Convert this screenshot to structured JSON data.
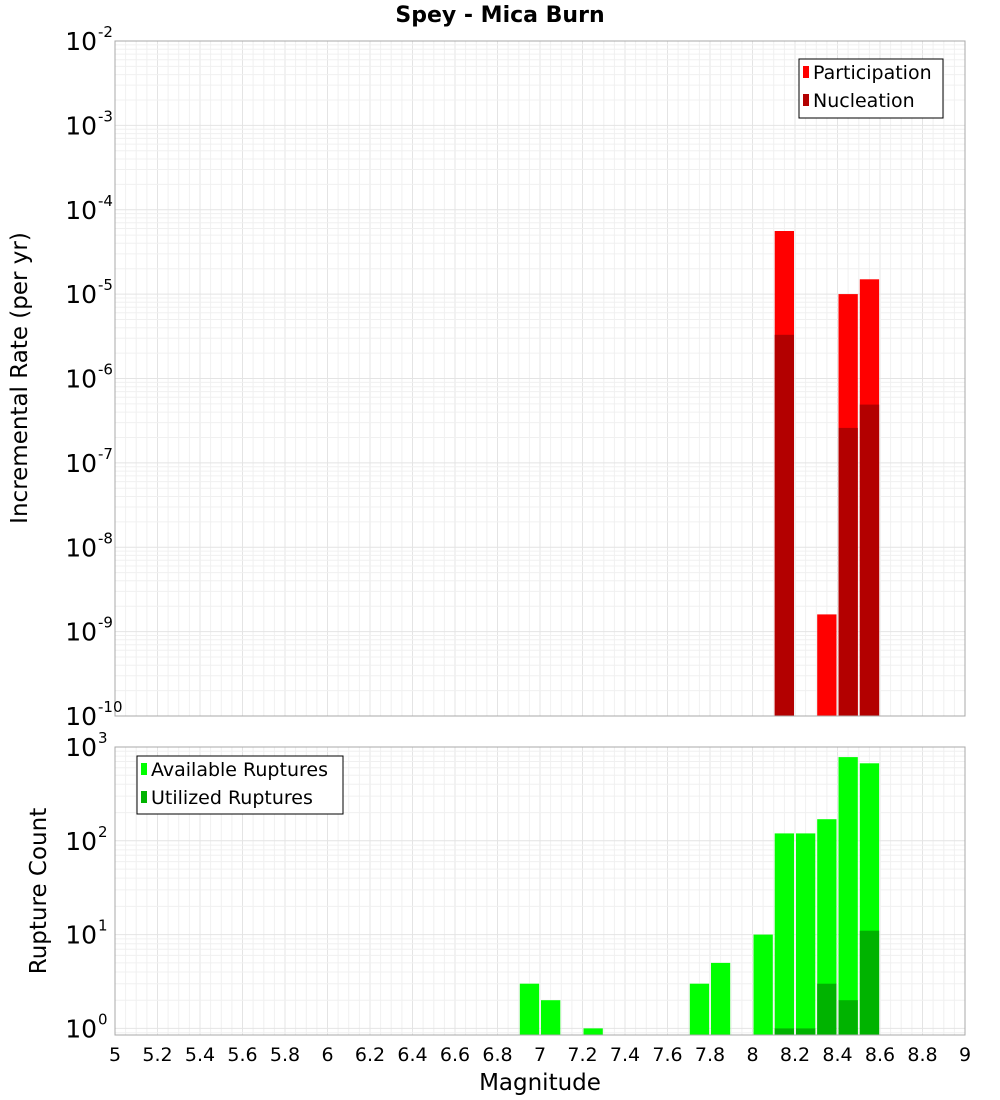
{
  "chart_data": [
    {
      "type": "bar",
      "title": "Spey - Mica Burn",
      "ylabel": "Incremental Rate (per yr)",
      "xlabel": "",
      "xlim": [
        5,
        9
      ],
      "ylim_log10": [
        -10,
        -2
      ],
      "yscale": "log",
      "bin_width": 0.1,
      "legend_position": "top-right",
      "y_ticks": [
        {
          "base": "10",
          "exp": "-2"
        },
        {
          "base": "10",
          "exp": "-3"
        },
        {
          "base": "10",
          "exp": "-4"
        },
        {
          "base": "10",
          "exp": "-5"
        },
        {
          "base": "10",
          "exp": "-6"
        },
        {
          "base": "10",
          "exp": "-7"
        },
        {
          "base": "10",
          "exp": "-8"
        },
        {
          "base": "10",
          "exp": "-9"
        },
        {
          "base": "10",
          "exp": "-10"
        }
      ],
      "series": [
        {
          "name": "Participation",
          "color": "#ff0000",
          "points": [
            {
              "x": 8.15,
              "y": 5.6e-05
            },
            {
              "x": 8.35,
              "y": 1.6e-09
            },
            {
              "x": 8.45,
              "y": 1e-05
            },
            {
              "x": 8.55,
              "y": 1.5e-05
            }
          ]
        },
        {
          "name": "Nucleation",
          "color": "#b30000",
          "points": [
            {
              "x": 8.15,
              "y": 3.3e-06
            },
            {
              "x": 8.45,
              "y": 2.6e-07
            },
            {
              "x": 8.55,
              "y": 4.9e-07
            }
          ]
        }
      ]
    },
    {
      "type": "bar",
      "title": "",
      "ylabel": "Rupture Count",
      "xlabel": "Magnitude",
      "xlim": [
        5,
        9
      ],
      "ylim_log10": [
        -0.07,
        3
      ],
      "yscale": "log",
      "bin_width": 0.1,
      "legend_position": "top-left",
      "y_ticks": [
        {
          "base": "10",
          "exp": "3",
          "v": 3
        },
        {
          "base": "10",
          "exp": "2",
          "v": 2
        },
        {
          "base": "10",
          "exp": "1",
          "v": 1
        },
        {
          "base": "10",
          "exp": "0",
          "v": 0
        }
      ],
      "x_ticks": [
        "5",
        "5.2",
        "5.4",
        "5.6",
        "5.8",
        "6",
        "6.2",
        "6.4",
        "6.6",
        "6.8",
        "7",
        "7.2",
        "7.4",
        "7.6",
        "7.8",
        "8",
        "8.2",
        "8.4",
        "8.6",
        "8.8",
        "9"
      ],
      "series": [
        {
          "name": "Available Ruptures",
          "color": "#00ff00",
          "points": [
            {
              "x": 6.95,
              "y": 3
            },
            {
              "x": 7.05,
              "y": 2
            },
            {
              "x": 7.25,
              "y": 1
            },
            {
              "x": 7.75,
              "y": 3
            },
            {
              "x": 7.85,
              "y": 5
            },
            {
              "x": 8.05,
              "y": 10
            },
            {
              "x": 8.15,
              "y": 120
            },
            {
              "x": 8.25,
              "y": 120
            },
            {
              "x": 8.35,
              "y": 170
            },
            {
              "x": 8.45,
              "y": 780
            },
            {
              "x": 8.55,
              "y": 670
            }
          ]
        },
        {
          "name": "Utilized Ruptures",
          "color": "#00b300",
          "points": [
            {
              "x": 8.15,
              "y": 1
            },
            {
              "x": 8.25,
              "y": 1
            },
            {
              "x": 8.35,
              "y": 3
            },
            {
              "x": 8.45,
              "y": 2
            },
            {
              "x": 8.55,
              "y": 11
            }
          ]
        }
      ]
    }
  ]
}
